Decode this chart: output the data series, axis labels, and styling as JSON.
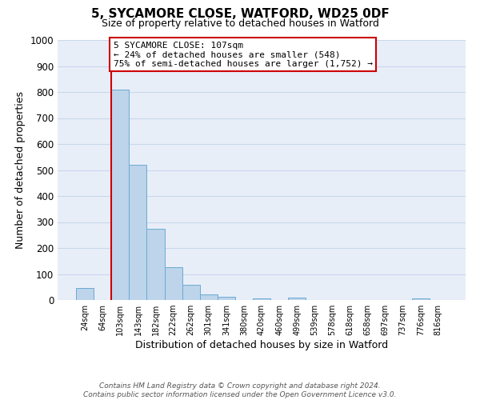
{
  "title": "5, SYCAMORE CLOSE, WATFORD, WD25 0DF",
  "subtitle": "Size of property relative to detached houses in Watford",
  "xlabel": "Distribution of detached houses by size in Watford",
  "ylabel": "Number of detached properties",
  "bar_labels": [
    "24sqm",
    "64sqm",
    "103sqm",
    "143sqm",
    "182sqm",
    "222sqm",
    "262sqm",
    "301sqm",
    "341sqm",
    "380sqm",
    "420sqm",
    "460sqm",
    "499sqm",
    "539sqm",
    "578sqm",
    "618sqm",
    "658sqm",
    "697sqm",
    "737sqm",
    "776sqm",
    "816sqm"
  ],
  "bar_values": [
    46,
    0,
    810,
    520,
    275,
    125,
    57,
    23,
    13,
    0,
    7,
    0,
    8,
    0,
    0,
    0,
    0,
    0,
    0,
    6,
    0
  ],
  "bar_color": "#bdd4ea",
  "bar_edgecolor": "#6aaad4",
  "grid_color": "#c8d8ec",
  "ylim": [
    0,
    1000
  ],
  "yticks": [
    0,
    100,
    200,
    300,
    400,
    500,
    600,
    700,
    800,
    900,
    1000
  ],
  "vline_x_idx": 2,
  "vline_color": "#cc0000",
  "annotation_title": "5 SYCAMORE CLOSE: 107sqm",
  "annotation_line1": "← 24% of detached houses are smaller (548)",
  "annotation_line2": "75% of semi-detached houses are larger (1,752) →",
  "annotation_box_edgecolor": "#cc0000",
  "footer_line1": "Contains HM Land Registry data © Crown copyright and database right 2024.",
  "footer_line2": "Contains public sector information licensed under the Open Government Licence v3.0.",
  "bg_color": "#e8eef8"
}
